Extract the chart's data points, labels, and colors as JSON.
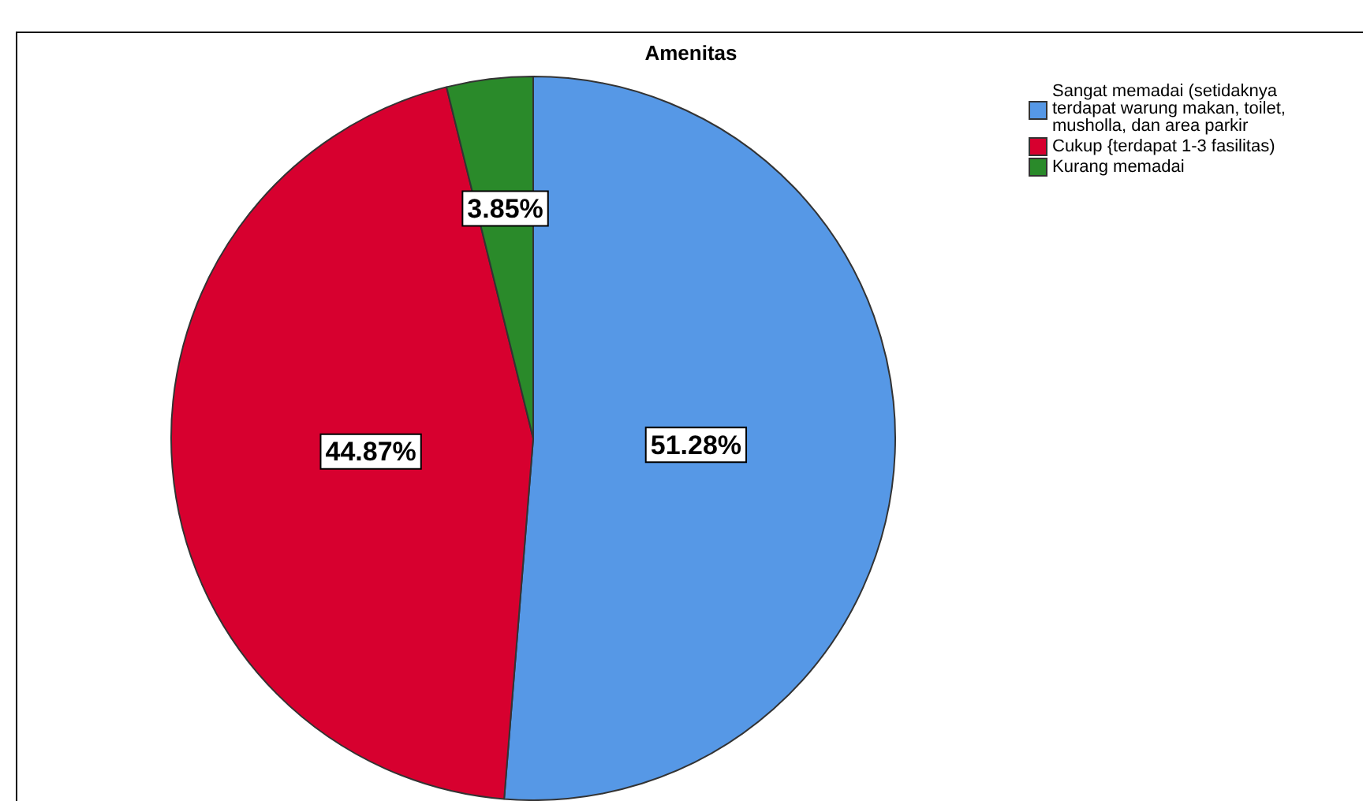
{
  "chart_data": {
    "type": "pie",
    "title": "Amenitas",
    "categories": [
      "Sangat memadai (setidaknya terdapat warung makan, toilet, musholla, dan area parkir",
      "Cukup {terdapat 1-3 fasilitas)",
      "Kurang memadai"
    ],
    "values": [
      51.28,
      44.87,
      3.85
    ],
    "colors": [
      "#5698e6",
      "#d7002f",
      "#2a8a2a"
    ],
    "value_labels": [
      "51.28%",
      "44.87%",
      "3.85%"
    ],
    "legend": "top right"
  }
}
